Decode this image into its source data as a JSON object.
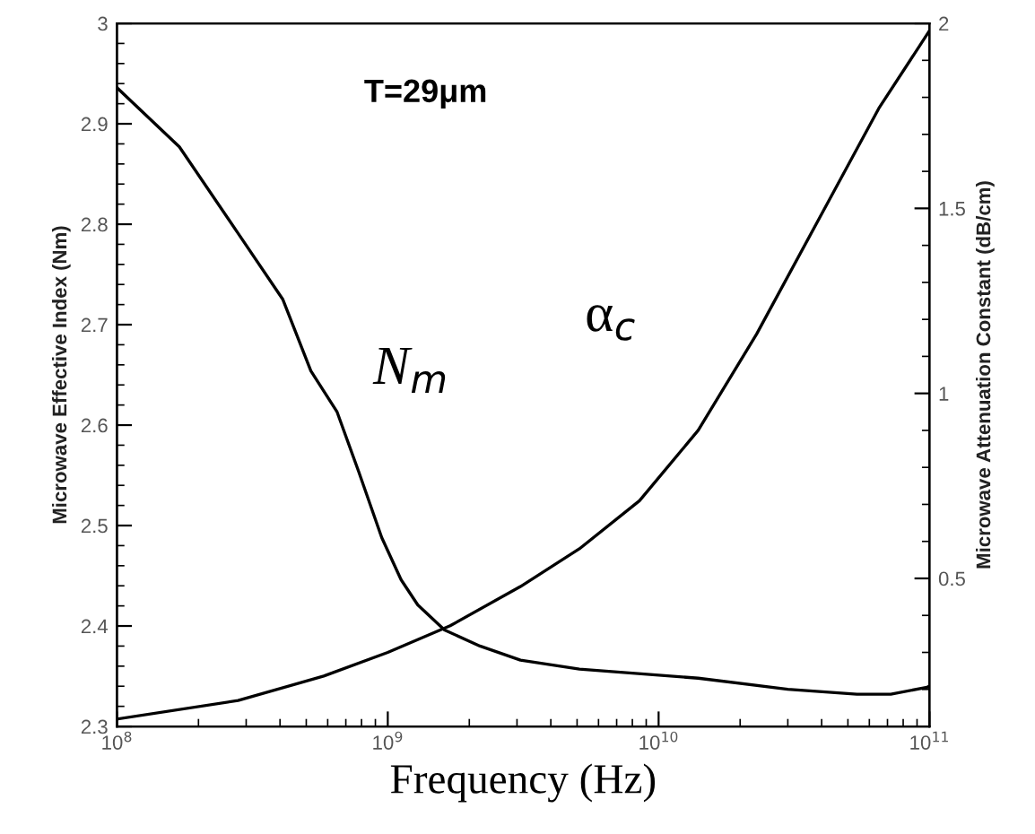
{
  "chart_data": {
    "type": "line",
    "xlabel": "Frequency (Hz)",
    "ylabel": "Microwave Effective Index (Nm)",
    "y2label": "Microwave Attenuation Constant (dB/cm)",
    "annotations": [
      "T=29μm"
    ],
    "log": "x",
    "grid": false,
    "legend": false,
    "marker": "none",
    "line_style": "solid",
    "xlim": [
      100000000,
      100000000000
    ],
    "xticks": [
      {
        "value": 100000000,
        "label": "10$^{8}$"
      },
      {
        "value": 1000000000,
        "label": "10$^{9}$"
      },
      {
        "value": 10000000000,
        "label": "10$^{10}$"
      },
      {
        "value": 100000000000,
        "label": "10$^{11}$"
      }
    ],
    "ylim": [
      2.3,
      3
    ],
    "yticks": [
      2.3,
      2.4,
      2.5,
      2.6,
      2.7,
      2.8,
      2.9,
      3
    ],
    "y2lim": [
      0.1,
      2
    ],
    "y2ticks": [
      0.5,
      1,
      1.5,
      2
    ],
    "series": [
      {
        "name": "N$_{m}$",
        "color": "#000000",
        "x": [
          100000000,
          170000000,
          280000000,
          410000000,
          520000000,
          650000000,
          780000000,
          950000000,
          1120000000,
          1290000000,
          1620000000,
          2190000000,
          3090000000,
          5100000000,
          14000000000,
          30000000000,
          54000000000,
          72000000000,
          98000000000,
          100000000000
        ],
        "values": [
          2.936,
          2.877,
          2.791,
          2.725,
          2.654,
          2.613,
          2.554,
          2.488,
          2.446,
          2.421,
          2.396,
          2.38,
          2.366,
          2.357,
          2.348,
          2.337,
          2.332,
          2.332,
          2.339,
          2.34
        ]
      },
      {
        "name": "α$_{c}$",
        "color": "#000000",
        "axis": "y2",
        "x": [
          100000000,
          280000000,
          580000000,
          1000000000,
          1700000000,
          3090000000,
          5100000000,
          8500000000,
          14000000000,
          23000000000,
          39000000000,
          65000000000,
          98000000000,
          100000000000
        ],
        "values": [
          0.12,
          0.17,
          0.236,
          0.3,
          0.372,
          0.478,
          0.58,
          0.71,
          0.9,
          1.16,
          1.47,
          1.77,
          1.97,
          1.98
        ]
      }
    ]
  }
}
